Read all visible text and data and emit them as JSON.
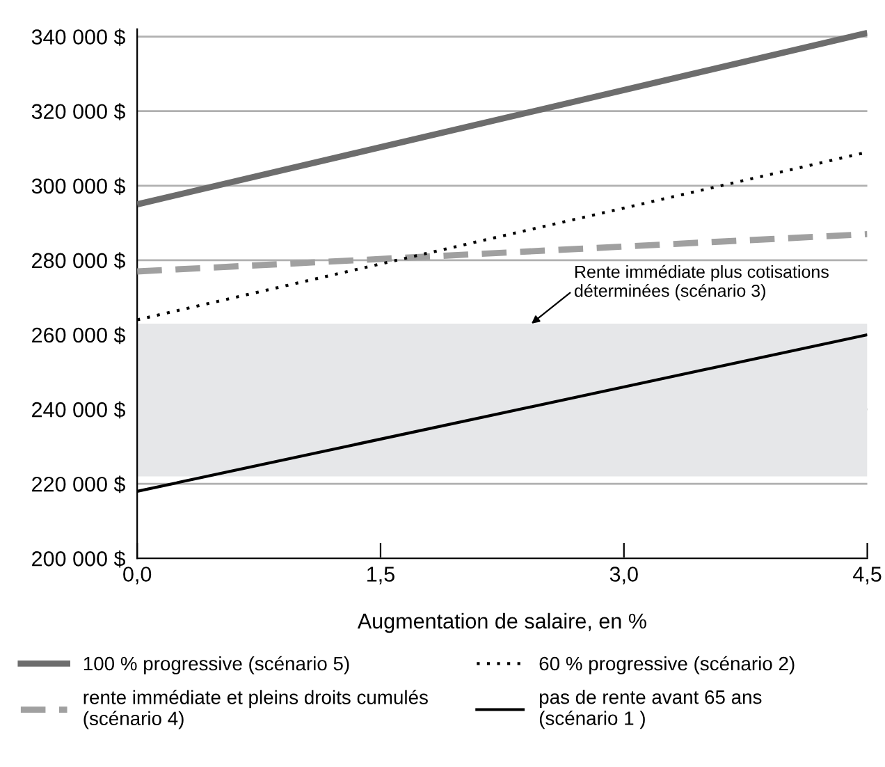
{
  "chart_data": {
    "type": "line",
    "xlabel": "Augmentation de salaire, en %",
    "x": [
      0,
      4.5
    ],
    "series": [
      {
        "name": "100 % progressive (scénario 5)",
        "color": "#6d6d6d",
        "line_style": "solid",
        "values": [
          295000,
          341000
        ]
      },
      {
        "name": "rente immédiate et pleins droits cumulés\n(scénario 4)",
        "color": "#a0a0a0",
        "line_style": "dashed",
        "values": [
          277000,
          287000
        ]
      },
      {
        "name": "60 % progressive (scénario 2)",
        "color": "#000000",
        "line_style": "dotted",
        "values": [
          264000,
          309000
        ]
      },
      {
        "name": "pas de rente avant 65 ans\n(scénario 1 )",
        "color": "#000000",
        "line_style": "solid",
        "values": [
          218000,
          260000
        ]
      }
    ],
    "bands": [
      {
        "axis": "y",
        "from": 222000,
        "to": 263000,
        "color": "#e6e7e9"
      }
    ],
    "annotations": [
      {
        "text": "Rente immédiate plus cotisations\ndéterminées (scénario 3)",
        "x": 2.43,
        "y": 263000
      }
    ],
    "xlim": [
      0,
      4.5
    ],
    "xticks": [
      {
        "value": 0,
        "label": "0,0"
      },
      {
        "value": 1.5,
        "label": "1,5"
      },
      {
        "value": 3,
        "label": "3,0"
      },
      {
        "value": 4.5,
        "label": "4,5"
      }
    ],
    "ylim": [
      200000,
      342000
    ],
    "yticks": [
      {
        "value": 200000,
        "label": "200 000 $"
      },
      {
        "value": 220000,
        "label": "220 000 $"
      },
      {
        "value": 240000,
        "label": "240 000 $"
      },
      {
        "value": 260000,
        "label": "260 000 $"
      },
      {
        "value": 280000,
        "label": "280 000 $"
      },
      {
        "value": 300000,
        "label": "300 000 $"
      },
      {
        "value": 320000,
        "label": "320 000 $"
      },
      {
        "value": 340000,
        "label": "340 000 $"
      }
    ],
    "grid": "y",
    "legend": "bottom",
    "marker": "none"
  }
}
